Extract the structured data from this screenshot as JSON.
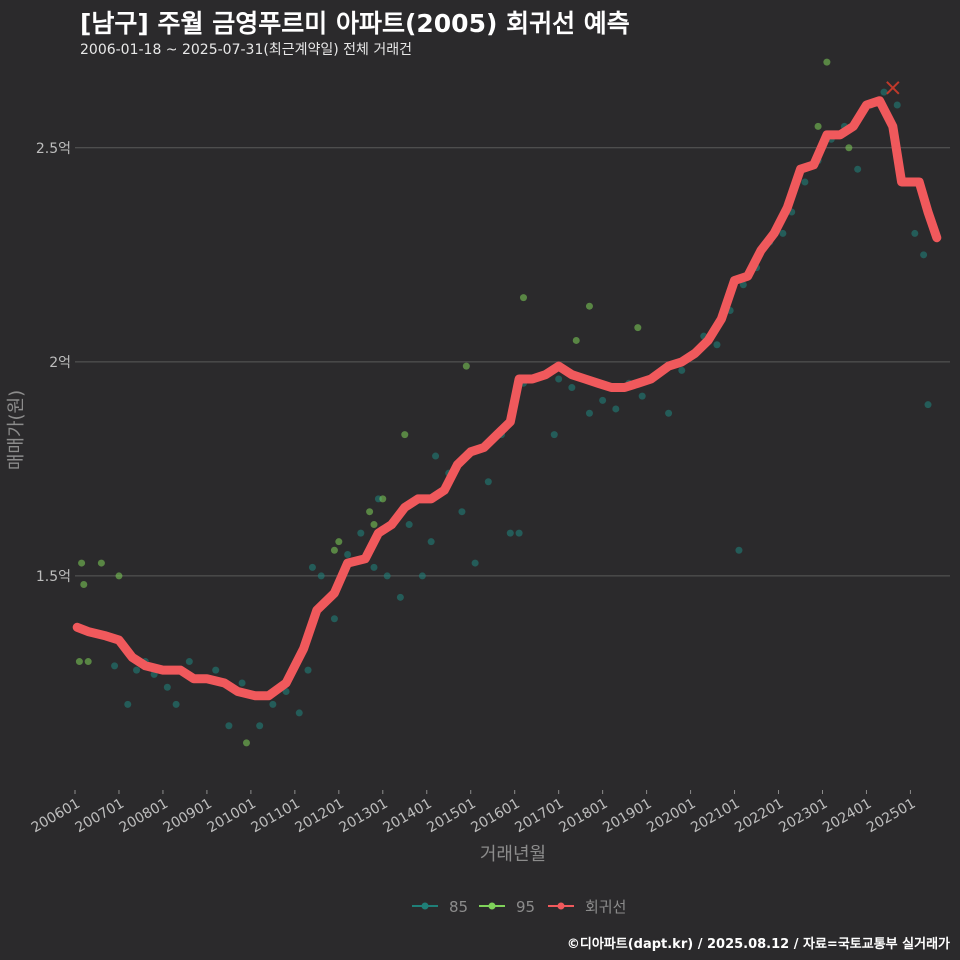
{
  "header": {
    "title": "[남구] 주월 금영푸르미 아파트(2005) 회귀선 예측",
    "subtitle": "2006-01-18 ~ 2025-07-31(최근계약일) 전체 거래건"
  },
  "footer": {
    "caption": "©디아파트(dapt.kr) / 2025.08.12 / 자료=국토교통부 실거래가"
  },
  "colors": {
    "background": "#2b2a2c",
    "grid": "#5a5a5a",
    "series_85": "#1f7f78",
    "series_95": "#7fd25a",
    "regression": "#f0595c",
    "last_marker": "#c0392b"
  },
  "chart_data": {
    "type": "scatter",
    "title": "[남구] 주월 금영푸르미 아파트(2005) 회귀선 예측",
    "xlabel": "거래년월",
    "ylabel": "매매가(원)",
    "xlim": [
      2006.0,
      2025.9
    ],
    "ylim": [
      1.0,
      2.67
    ],
    "y_ticks": [
      1.5,
      2.0,
      2.5
    ],
    "y_tick_labels": [
      "1.5억",
      "2억",
      "2.5억"
    ],
    "x_tick_labels": [
      "200601",
      "200701",
      "200801",
      "200901",
      "201001",
      "201101",
      "201201",
      "201301",
      "201401",
      "201501",
      "201601",
      "201701",
      "201801",
      "201901",
      "202001",
      "202101",
      "202201",
      "202301",
      "202401",
      "202501"
    ],
    "grid": "horizontal",
    "legend": {
      "position": "bottom",
      "labels": [
        "85",
        "95",
        "회귀선"
      ]
    },
    "series": [
      {
        "name": "85",
        "kind": "scatter",
        "points": [
          [
            2006.9,
            1.29
          ],
          [
            2007.2,
            1.2
          ],
          [
            2007.4,
            1.28
          ],
          [
            2007.6,
            1.3
          ],
          [
            2007.8,
            1.27
          ],
          [
            2008.1,
            1.24
          ],
          [
            2008.3,
            1.2
          ],
          [
            2008.6,
            1.3
          ],
          [
            2008.9,
            1.26
          ],
          [
            2009.2,
            1.28
          ],
          [
            2009.5,
            1.15
          ],
          [
            2009.8,
            1.25
          ],
          [
            2010.2,
            1.15
          ],
          [
            2010.5,
            1.2
          ],
          [
            2010.8,
            1.23
          ],
          [
            2011.1,
            1.18
          ],
          [
            2011.3,
            1.28
          ],
          [
            2011.6,
            1.5
          ],
          [
            2011.9,
            1.4
          ],
          [
            2012.2,
            1.55
          ],
          [
            2012.5,
            1.6
          ],
          [
            2012.8,
            1.52
          ],
          [
            2013.1,
            1.5
          ],
          [
            2013.4,
            1.45
          ],
          [
            2013.6,
            1.62
          ],
          [
            2013.9,
            1.5
          ],
          [
            2014.2,
            1.78
          ],
          [
            2014.5,
            1.74
          ],
          [
            2014.8,
            1.65
          ],
          [
            2015.1,
            1.53
          ],
          [
            2015.4,
            1.72
          ],
          [
            2015.7,
            1.83
          ],
          [
            2015.9,
            1.6
          ],
          [
            2016.2,
            1.95
          ],
          [
            2016.4,
            1.96
          ],
          [
            2016.7,
            1.97
          ],
          [
            2017.0,
            1.96
          ],
          [
            2017.3,
            1.94
          ],
          [
            2017.7,
            1.88
          ],
          [
            2018.0,
            1.91
          ],
          [
            2018.3,
            1.89
          ],
          [
            2018.6,
            1.95
          ],
          [
            2018.9,
            1.92
          ],
          [
            2019.2,
            1.97
          ],
          [
            2019.5,
            1.88
          ],
          [
            2019.8,
            1.98
          ],
          [
            2020.1,
            2.02
          ],
          [
            2020.3,
            2.06
          ],
          [
            2020.6,
            2.04
          ],
          [
            2020.9,
            2.12
          ],
          [
            2021.2,
            2.18
          ],
          [
            2021.5,
            2.22
          ],
          [
            2021.8,
            2.28
          ],
          [
            2022.1,
            2.3
          ],
          [
            2022.3,
            2.35
          ],
          [
            2022.6,
            2.42
          ],
          [
            2022.9,
            2.47
          ],
          [
            2023.2,
            2.52
          ],
          [
            2023.5,
            2.55
          ],
          [
            2023.8,
            2.45
          ],
          [
            2024.1,
            2.6
          ],
          [
            2024.4,
            2.63
          ],
          [
            2024.7,
            2.6
          ],
          [
            2025.1,
            2.3
          ],
          [
            2025.3,
            2.25
          ],
          [
            2025.4,
            1.9
          ],
          [
            2021.1,
            1.56
          ],
          [
            2016.1,
            1.6
          ],
          [
            2016.9,
            1.83
          ],
          [
            2014.1,
            1.58
          ],
          [
            2012.9,
            1.68
          ],
          [
            2011.4,
            1.52
          ]
        ]
      },
      {
        "name": "95",
        "kind": "scatter",
        "points": [
          [
            2006.1,
            1.3
          ],
          [
            2006.15,
            1.53
          ],
          [
            2006.2,
            1.48
          ],
          [
            2006.3,
            1.3
          ],
          [
            2006.6,
            1.53
          ],
          [
            2007.0,
            1.5
          ],
          [
            2009.9,
            1.11
          ],
          [
            2011.9,
            1.56
          ],
          [
            2012.0,
            1.58
          ],
          [
            2012.7,
            1.65
          ],
          [
            2012.8,
            1.62
          ],
          [
            2013.0,
            1.68
          ],
          [
            2013.5,
            1.83
          ],
          [
            2014.9,
            1.99
          ],
          [
            2016.2,
            2.15
          ],
          [
            2017.4,
            2.05
          ],
          [
            2017.7,
            2.13
          ],
          [
            2018.8,
            2.08
          ],
          [
            2022.9,
            2.55
          ],
          [
            2022.95,
            2.5
          ],
          [
            2023.1,
            2.7
          ],
          [
            2023.6,
            2.5
          ]
        ]
      },
      {
        "name": "회귀선",
        "kind": "line",
        "points": [
          [
            2006.05,
            1.38
          ],
          [
            2006.3,
            1.37
          ],
          [
            2006.7,
            1.36
          ],
          [
            2007.0,
            1.35
          ],
          [
            2007.3,
            1.31
          ],
          [
            2007.6,
            1.29
          ],
          [
            2008.0,
            1.28
          ],
          [
            2008.4,
            1.28
          ],
          [
            2008.7,
            1.26
          ],
          [
            2009.0,
            1.26
          ],
          [
            2009.4,
            1.25
          ],
          [
            2009.7,
            1.23
          ],
          [
            2010.1,
            1.22
          ],
          [
            2010.4,
            1.22
          ],
          [
            2010.8,
            1.25
          ],
          [
            2011.2,
            1.33
          ],
          [
            2011.5,
            1.42
          ],
          [
            2011.9,
            1.46
          ],
          [
            2012.2,
            1.53
          ],
          [
            2012.6,
            1.54
          ],
          [
            2012.9,
            1.6
          ],
          [
            2013.2,
            1.62
          ],
          [
            2013.5,
            1.66
          ],
          [
            2013.8,
            1.68
          ],
          [
            2014.1,
            1.68
          ],
          [
            2014.4,
            1.7
          ],
          [
            2014.7,
            1.76
          ],
          [
            2015.0,
            1.79
          ],
          [
            2015.3,
            1.8
          ],
          [
            2015.6,
            1.83
          ],
          [
            2015.9,
            1.86
          ],
          [
            2016.1,
            1.96
          ],
          [
            2016.4,
            1.96
          ],
          [
            2016.7,
            1.97
          ],
          [
            2017.0,
            1.99
          ],
          [
            2017.3,
            1.97
          ],
          [
            2017.6,
            1.96
          ],
          [
            2017.9,
            1.95
          ],
          [
            2018.2,
            1.94
          ],
          [
            2018.5,
            1.94
          ],
          [
            2018.8,
            1.95
          ],
          [
            2019.1,
            1.96
          ],
          [
            2019.5,
            1.99
          ],
          [
            2019.8,
            2.0
          ],
          [
            2020.1,
            2.02
          ],
          [
            2020.4,
            2.05
          ],
          [
            2020.7,
            2.1
          ],
          [
            2021.0,
            2.19
          ],
          [
            2021.3,
            2.2
          ],
          [
            2021.6,
            2.26
          ],
          [
            2021.9,
            2.3
          ],
          [
            2022.2,
            2.36
          ],
          [
            2022.5,
            2.45
          ],
          [
            2022.8,
            2.46
          ],
          [
            2023.1,
            2.53
          ],
          [
            2023.4,
            2.53
          ],
          [
            2023.7,
            2.55
          ],
          [
            2024.0,
            2.6
          ],
          [
            2024.3,
            2.61
          ],
          [
            2024.6,
            2.55
          ],
          [
            2024.8,
            2.42
          ],
          [
            2025.2,
            2.42
          ],
          [
            2025.4,
            2.35
          ],
          [
            2025.6,
            2.29
          ]
        ]
      }
    ],
    "last_point": [
      2024.6,
      2.64
    ]
  }
}
